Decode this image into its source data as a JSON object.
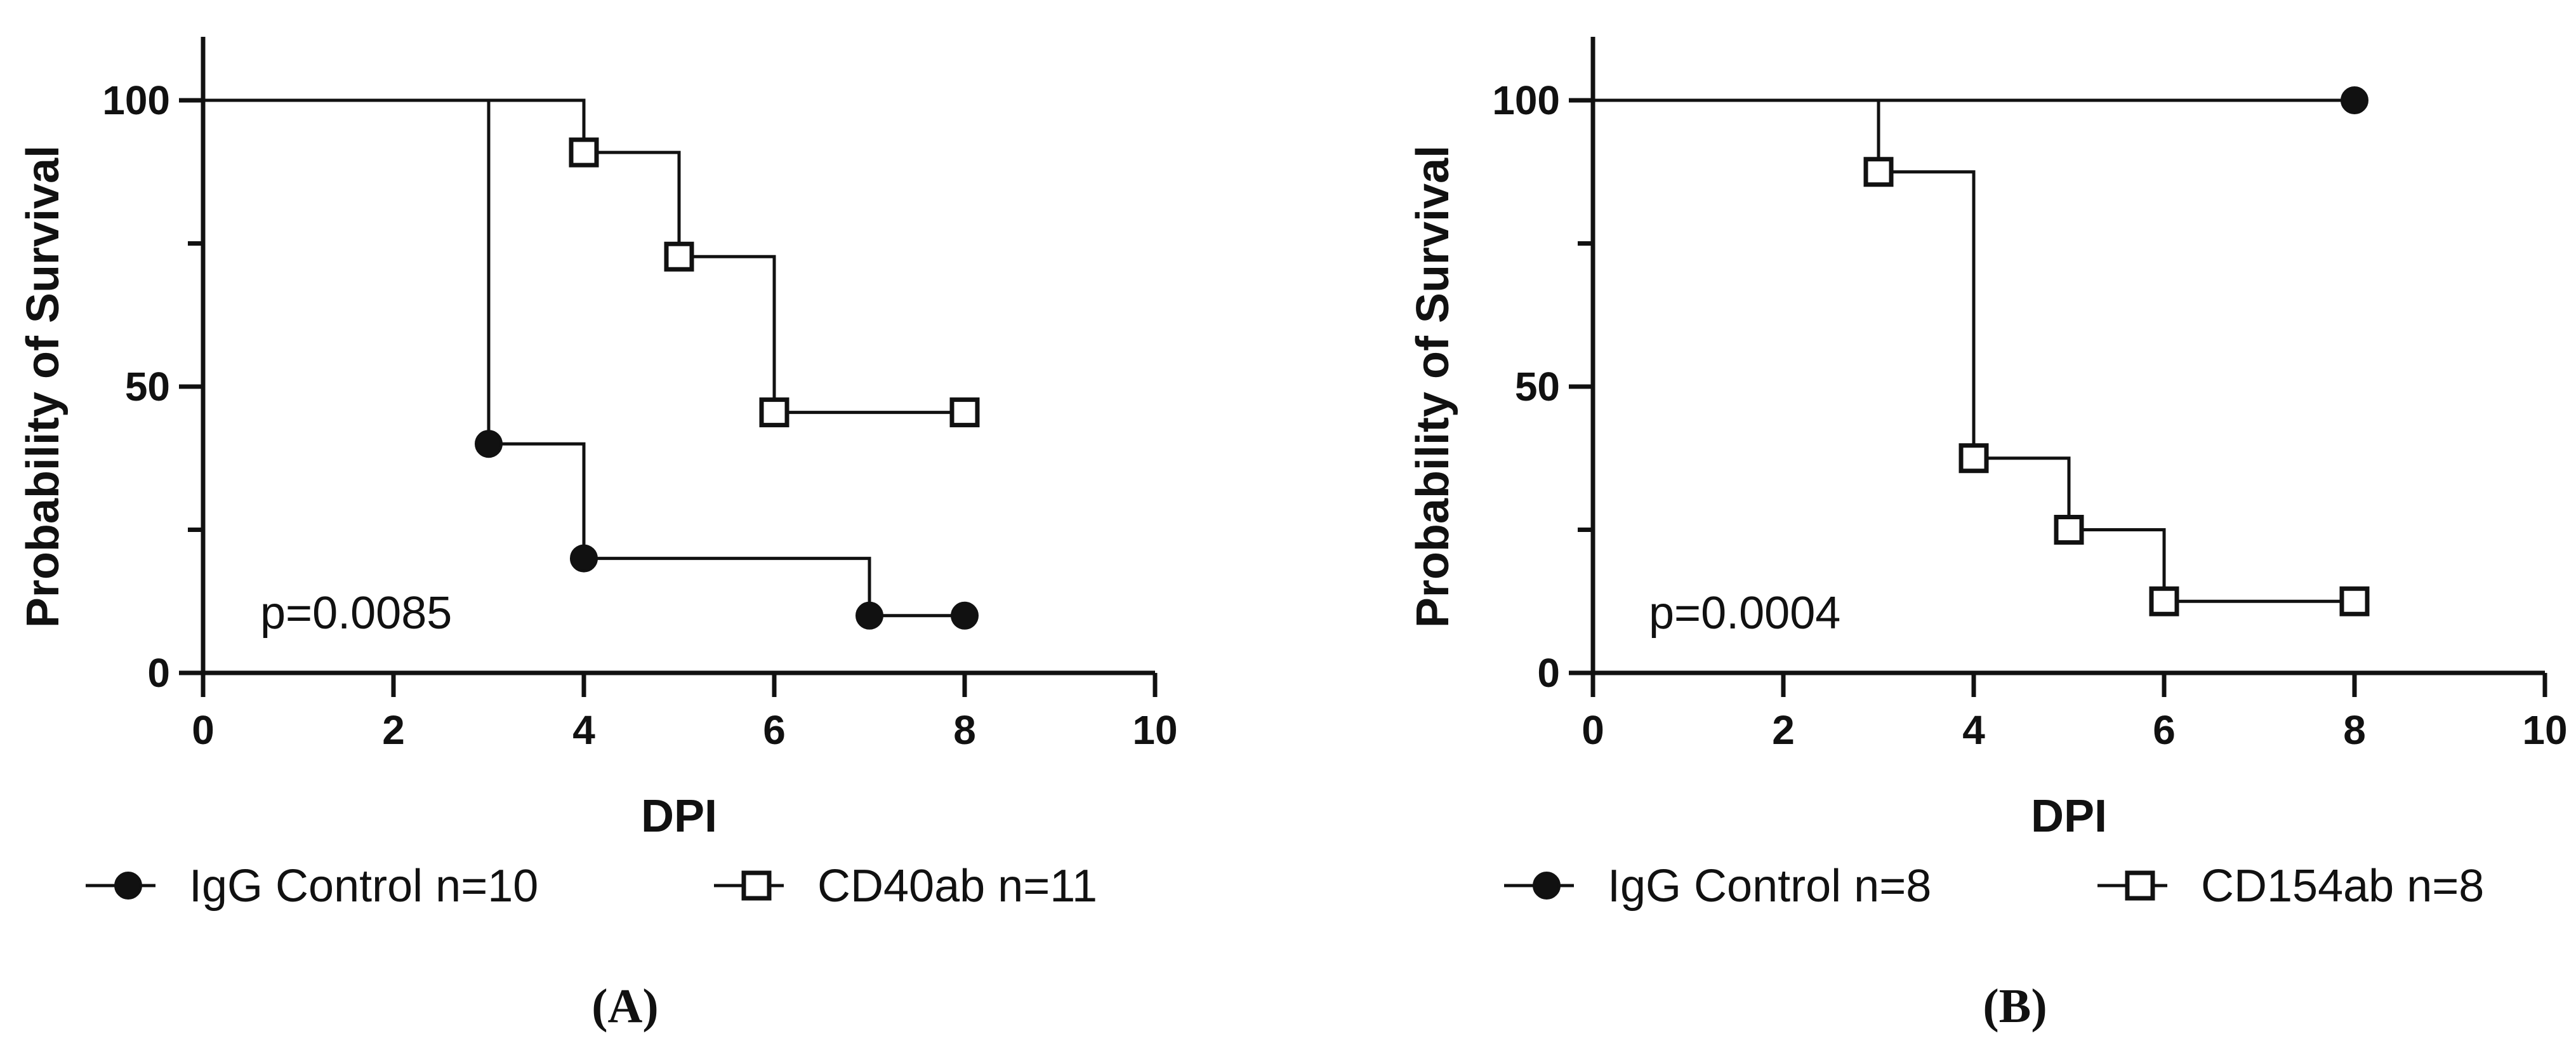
{
  "chart_data": [
    {
      "panel_label": "(A)",
      "type": "line",
      "subtype": "kaplan-meier survival",
      "xlabel": "DPI",
      "ylabel": "Probability of Survival",
      "xlim": [
        0,
        10
      ],
      "ylim": [
        0,
        100
      ],
      "x_ticks": [
        0,
        2,
        4,
        6,
        8,
        10
      ],
      "y_ticks": [
        0,
        50,
        100
      ],
      "annotation": "p=0.0085",
      "legend_position": "bottom",
      "grid": false,
      "series": [
        {
          "name": "IgG Control n=10",
          "marker": "filled-circle",
          "x": [
            3,
            4,
            7,
            8
          ],
          "y": [
            40,
            20,
            10,
            10
          ]
        },
        {
          "name": "CD40ab n=11",
          "marker": "open-square",
          "x": [
            4,
            5,
            6,
            8
          ],
          "y": [
            90.9,
            72.7,
            45.5,
            45.5
          ]
        }
      ]
    },
    {
      "panel_label": "(B)",
      "type": "line",
      "subtype": "kaplan-meier survival",
      "xlabel": "DPI",
      "ylabel": "Probability of Survival",
      "xlim": [
        0,
        10
      ],
      "ylim": [
        0,
        100
      ],
      "x_ticks": [
        0,
        2,
        4,
        6,
        8,
        10
      ],
      "y_ticks": [
        0,
        50,
        100
      ],
      "annotation": "p=0.0004",
      "legend_position": "bottom",
      "grid": false,
      "series": [
        {
          "name": "IgG Control n=8",
          "marker": "filled-circle",
          "x": [
            8
          ],
          "y": [
            100
          ]
        },
        {
          "name": "CD154ab n=8",
          "marker": "open-square",
          "x": [
            3,
            4,
            5,
            6,
            8
          ],
          "y": [
            87.5,
            37.5,
            25,
            12.5,
            12.5
          ]
        }
      ]
    }
  ]
}
